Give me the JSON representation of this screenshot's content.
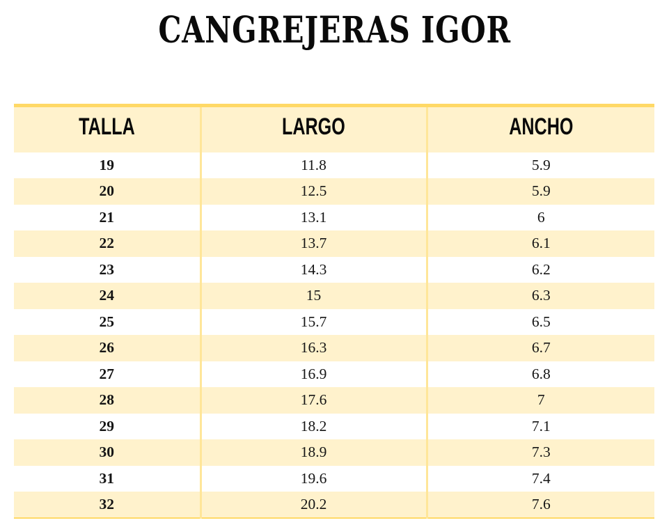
{
  "title": "CANGREJERAS IGOR",
  "colors": {
    "accent_border": "#FFD966",
    "row_stripe": "#FFF2CC",
    "column_divider": "#FFE699"
  },
  "table": {
    "columns": [
      "TALLA",
      "LARGO",
      "ANCHO"
    ],
    "rows": [
      {
        "talla": "19",
        "largo": "11.8",
        "ancho": "5.9"
      },
      {
        "talla": "20",
        "largo": "12.5",
        "ancho": "5.9"
      },
      {
        "talla": "21",
        "largo": "13.1",
        "ancho": "6"
      },
      {
        "talla": "22",
        "largo": "13.7",
        "ancho": "6.1"
      },
      {
        "talla": "23",
        "largo": "14.3",
        "ancho": "6.2"
      },
      {
        "talla": "24",
        "largo": "15",
        "ancho": "6.3"
      },
      {
        "talla": "25",
        "largo": "15.7",
        "ancho": "6.5"
      },
      {
        "talla": "26",
        "largo": "16.3",
        "ancho": "6.7"
      },
      {
        "talla": "27",
        "largo": "16.9",
        "ancho": "6.8"
      },
      {
        "talla": "28",
        "largo": "17.6",
        "ancho": "7"
      },
      {
        "talla": "29",
        "largo": "18.2",
        "ancho": "7.1"
      },
      {
        "talla": "30",
        "largo": "18.9",
        "ancho": "7.3"
      },
      {
        "talla": "31",
        "largo": "19.6",
        "ancho": "7.4"
      },
      {
        "talla": "32",
        "largo": "20.2",
        "ancho": "7.6"
      }
    ]
  }
}
